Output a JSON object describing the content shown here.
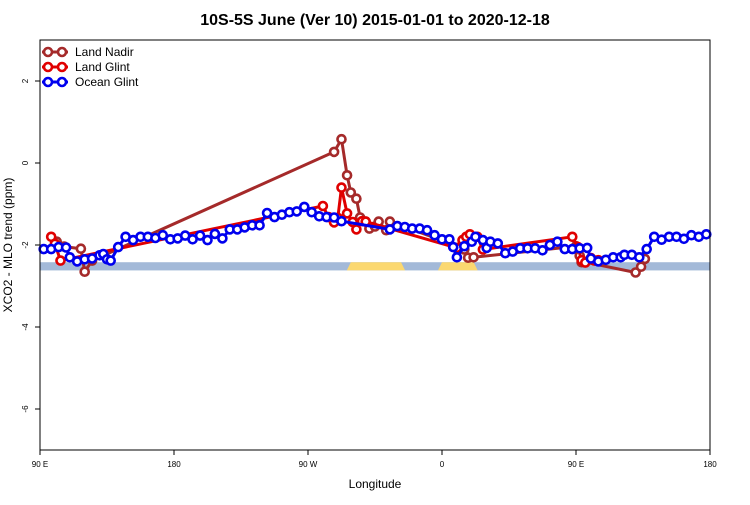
{
  "chart_data": {
    "type": "line",
    "title": "10S-5S June (Ver 10)   2015-01-01 to 2020-12-18",
    "xlabel": "Longitude",
    "ylabel": "XCO2 - MLO trend (ppm)",
    "xlim": [
      90,
      450
    ],
    "ylim": [
      -7,
      3
    ],
    "x_ticks": [
      {
        "value": 90,
        "label": "90 E"
      },
      {
        "value": 162,
        "label": "180"
      },
      {
        "value": 234,
        "label": "90 W"
      },
      {
        "value": 306,
        "label": "0"
      },
      {
        "value": 378,
        "label": "90 E"
      },
      {
        "value": 450,
        "label": "180"
      }
    ],
    "y_ticks": [
      2,
      0,
      -2,
      -4,
      -6
    ],
    "legend_position": "top-left",
    "grid": false,
    "land_ocean_band": {
      "y_range": [
        -2.42,
        -2.62
      ],
      "ocean_color": "#a3b9d8",
      "land_color": "#fbd870",
      "land_spans": [
        [
          257,
          284
        ],
        [
          306,
          323
        ]
      ]
    },
    "series": [
      {
        "name": "Land Nadir",
        "color": "#a52a2a",
        "x": [
          99,
          103,
          112,
          114,
          118,
          248,
          252,
          255,
          257,
          260,
          262,
          265,
          267,
          270,
          272,
          276,
          278,
          316,
          318,
          320,
          323,
          378,
          380,
          381,
          383,
          410,
          413,
          415
        ],
        "y": [
          -1.92,
          -2.04,
          -2.09,
          -2.65,
          -2.38,
          0.27,
          0.58,
          -0.3,
          -0.72,
          -0.87,
          -1.33,
          -1.43,
          -1.6,
          -1.55,
          -1.43,
          -1.64,
          -1.43,
          -2.05,
          -2.11,
          -2.31,
          -2.3,
          -2.03,
          -2.26,
          -2.42,
          -2.42,
          -2.67,
          -2.53,
          -2.34
        ]
      },
      {
        "name": "Land Glint",
        "color": "#e00000",
        "x": [
          96,
          98,
          101,
          242,
          245,
          248,
          250,
          252,
          255,
          258,
          260,
          263,
          265,
          314,
          317,
          319,
          321,
          325,
          328,
          376,
          379,
          381,
          383,
          386,
          388,
          390
        ],
        "y": [
          -1.8,
          -1.97,
          -2.38,
          -1.05,
          -1.32,
          -1.45,
          -1.34,
          -0.6,
          -1.23,
          -1.44,
          -1.62,
          -1.42,
          -1.43,
          -2.07,
          -1.88,
          -1.8,
          -1.74,
          -1.8,
          -2.11,
          -1.8,
          -2.05,
          -2.37,
          -2.43,
          -2.32,
          -2.38,
          -2.37
        ]
      },
      {
        "name": "Ocean Glint",
        "color": "#0000ee",
        "x": [
          92,
          96,
          100,
          104,
          106,
          110,
          114,
          118,
          122,
          124,
          126,
          128,
          132,
          136,
          140,
          144,
          148,
          152,
          156,
          160,
          164,
          168,
          172,
          176,
          180,
          184,
          188,
          192,
          196,
          200,
          204,
          208,
          212,
          216,
          220,
          224,
          228,
          232,
          236,
          240,
          244,
          248,
          252,
          278,
          282,
          286,
          290,
          294,
          298,
          302,
          306,
          310,
          312,
          314,
          318,
          322,
          324,
          328,
          330,
          332,
          336,
          340,
          344,
          348,
          352,
          356,
          360,
          364,
          368,
          372,
          376,
          380,
          384,
          386,
          390,
          394,
          398,
          402,
          404,
          408,
          412,
          416,
          420,
          424,
          428,
          432,
          436,
          440,
          444,
          448
        ],
        "y": [
          -2.1,
          -2.1,
          -2.05,
          -2.06,
          -2.3,
          -2.4,
          -2.35,
          -2.33,
          -2.25,
          -2.22,
          -2.35,
          -2.38,
          -2.05,
          -1.8,
          -1.88,
          -1.8,
          -1.8,
          -1.83,
          -1.76,
          -1.86,
          -1.84,
          -1.77,
          -1.86,
          -1.77,
          -1.88,
          -1.73,
          -1.84,
          -1.62,
          -1.62,
          -1.57,
          -1.52,
          -1.52,
          -1.22,
          -1.32,
          -1.26,
          -1.2,
          -1.18,
          -1.07,
          -1.2,
          -1.3,
          -1.32,
          -1.33,
          -1.42,
          -1.62,
          -1.54,
          -1.56,
          -1.6,
          -1.6,
          -1.64,
          -1.76,
          -1.86,
          -1.86,
          -2.05,
          -2.3,
          -2.03,
          -1.92,
          -1.8,
          -1.88,
          -2.07,
          -1.92,
          -1.96,
          -2.2,
          -2.16,
          -2.08,
          -2.08,
          -2.08,
          -2.13,
          -2.0,
          -1.92,
          -2.1,
          -2.1,
          -2.08,
          -2.07,
          -2.33,
          -2.4,
          -2.36,
          -2.3,
          -2.3,
          -2.24,
          -2.24,
          -2.3,
          -2.1,
          -1.8,
          -1.87,
          -1.8,
          -1.8,
          -1.85,
          -1.76,
          -1.8,
          -1.74
        ]
      }
    ]
  }
}
